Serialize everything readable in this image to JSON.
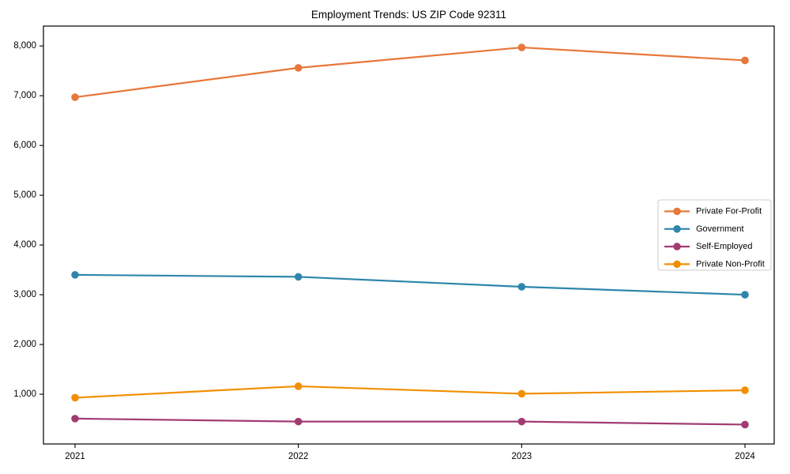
{
  "chart_data": {
    "type": "line",
    "title": "Employment Trends: US ZIP Code 92311",
    "x": [
      "2021",
      "2022",
      "2023",
      "2024"
    ],
    "series": [
      {
        "name": "Private For-Profit",
        "color": "#E8773B",
        "values": [
          6970,
          7560,
          7970,
          7710
        ]
      },
      {
        "name": "Government",
        "color": "#2E86AB",
        "values": [
          3400,
          3360,
          3160,
          3000
        ]
      },
      {
        "name": "Self-Employed",
        "color": "#A23B72",
        "values": [
          510,
          450,
          450,
          390
        ]
      },
      {
        "name": "Private Non-Profit",
        "color": "#F18F01",
        "values": [
          930,
          1160,
          1010,
          1080
        ]
      }
    ],
    "xlabel": "",
    "ylabel": "",
    "ylim": [
      0,
      8400
    ],
    "yticks": {
      "values": [
        1000,
        2000,
        3000,
        4000,
        5000,
        6000,
        7000,
        8000
      ],
      "labels": [
        "1,000",
        "2,000",
        "3,000",
        "4,000",
        "5,000",
        "6,000",
        "7,000",
        "8,000"
      ]
    },
    "legend": {
      "position": "center-right",
      "entries": [
        "Private For-Profit",
        "Government",
        "Self-Employed",
        "Private Non-Profit"
      ]
    },
    "grid": false,
    "marker": "circle",
    "background_color": "#ffffff",
    "axis_color": "#000000",
    "legend_border_color": "#cccccc"
  }
}
